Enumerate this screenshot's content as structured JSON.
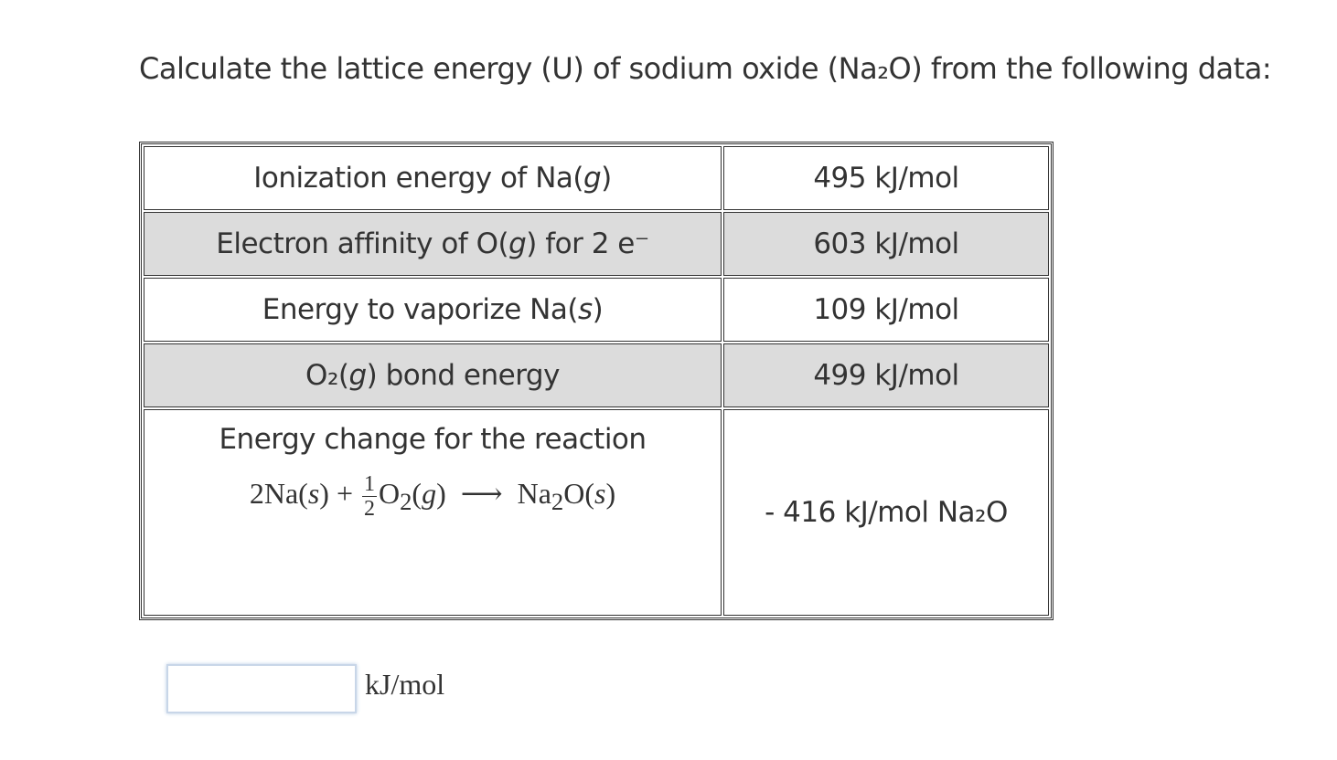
{
  "question": {
    "title": "Calculate the lattice energy (U) of sodium oxide (Na₂O) from the following data:"
  },
  "table": {
    "rows": [
      {
        "label": [
          "Ionization energy of Na(",
          "g",
          ")"
        ],
        "value": "495 kJ/mol"
      },
      {
        "label": [
          "Electron affinity of O(",
          "g",
          ") for 2 e⁻"
        ],
        "value": "603 kJ/mol"
      },
      {
        "label": [
          "Energy to vaporize Na(",
          "s",
          ")"
        ],
        "value": "109 kJ/mol"
      },
      {
        "label": [
          "O₂(",
          "g",
          ") bond energy"
        ],
        "value": "499 kJ/mol"
      },
      {
        "label": [
          "Energy change for the reaction"
        ],
        "equation": {
          "left": [
            "2Na(",
            "s",
            ") + "
          ],
          "fraction": [
            "1",
            "2"
          ],
          "species": [
            "O",
            "2",
            "(",
            "g",
            ")"
          ],
          "arrow": "⟶",
          "product": [
            "Na",
            "2",
            "O(",
            "s",
            ")"
          ]
        },
        "value": "- 416 kJ/mol Na₂O"
      }
    ]
  },
  "answer": {
    "unit": "kJ/mol"
  }
}
